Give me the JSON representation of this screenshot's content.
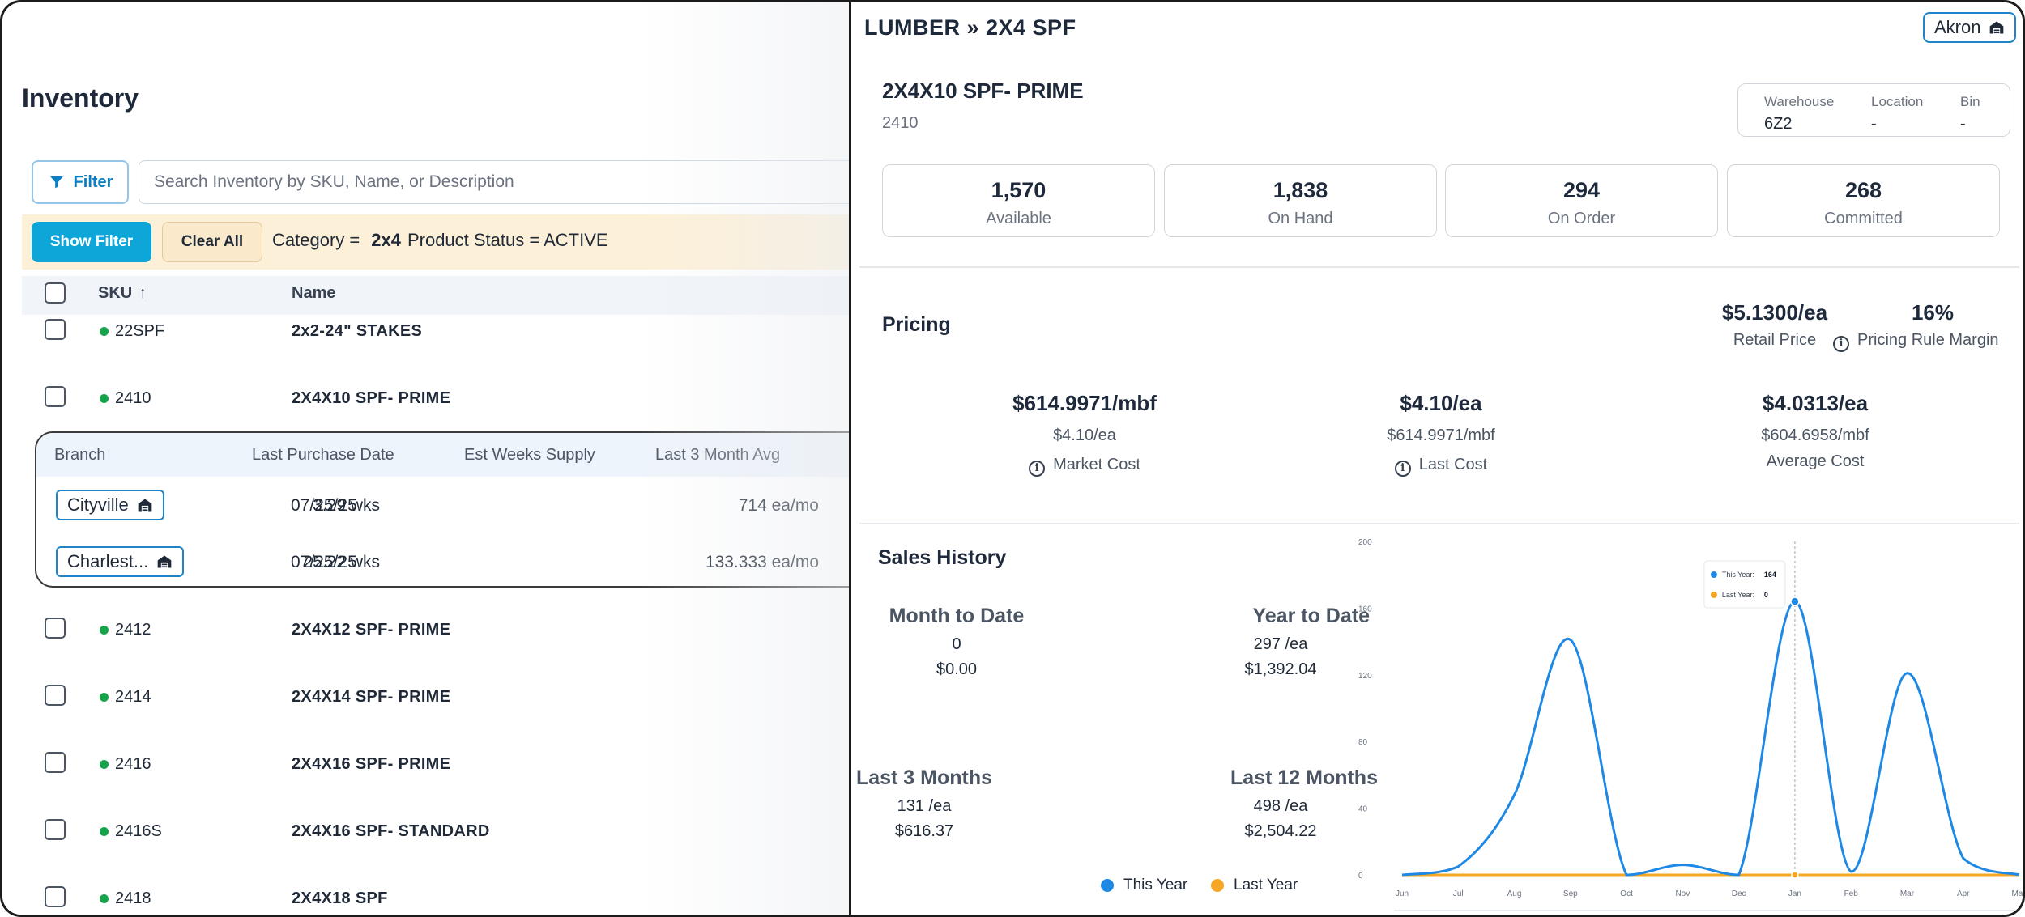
{
  "inventory": {
    "title": "Inventory",
    "filter_label": "Filter",
    "search_placeholder": "Search Inventory by SKU, Name, or Description",
    "show_filter_label": "Show Filter",
    "clear_all_label": "Clear All",
    "chips": {
      "category_label": "Category =",
      "category_value": "2x4",
      "status_text": "Product Status = ACTIVE"
    },
    "columns": {
      "sku": "SKU",
      "name": "Name"
    },
    "rows_top": [
      {
        "sku": "22SPF",
        "name": "2x2-24\" STAKES"
      },
      {
        "sku": "2410",
        "name": "2X4X10 SPF- PRIME"
      }
    ],
    "branch_table": {
      "headers": [
        "Branch",
        "Last Purchase Date",
        "Est Weeks Supply",
        "Last 3 Month Avg"
      ],
      "rows": [
        {
          "branch": "Cityville",
          "last_purchase": "07/25/25",
          "weeks_supply": "3.29 wks",
          "avg": "714 ea/mo"
        },
        {
          "branch": "Charlest...",
          "last_purchase": "07/25/25",
          "weeks_supply": "25.22 wks",
          "avg": "133.333 ea/mo"
        }
      ]
    },
    "rows_bottom": [
      {
        "sku": "2412",
        "name": "2X4X12 SPF- PRIME"
      },
      {
        "sku": "2414",
        "name": "2X4X14 SPF- PRIME"
      },
      {
        "sku": "2416",
        "name": "2X4X16 SPF- PRIME"
      },
      {
        "sku": "2416S",
        "name": "2X4X16 SPF- STANDARD"
      },
      {
        "sku": "2418",
        "name": "2X4X18 SPF"
      }
    ],
    "status_color": "#16a34a"
  },
  "detail": {
    "breadcrumb": "LUMBER » 2X4 SPF",
    "branch_label": "Akron",
    "product_name": "2X4X10 SPF- PRIME",
    "product_sku": "2410",
    "location": {
      "warehouse_label": "Warehouse",
      "warehouse_value": "6Z2",
      "location_label": "Location",
      "location_value": "-",
      "bin_label": "Bin",
      "bin_value": "-"
    },
    "stats": [
      {
        "value": "1,570",
        "label": "Available"
      },
      {
        "value": "1,838",
        "label": "On Hand"
      },
      {
        "value": "294",
        "label": "On Order"
      },
      {
        "value": "268",
        "label": "Committed"
      }
    ],
    "pricing": {
      "title": "Pricing",
      "retail_price": "$5.1300/ea",
      "retail_label": "Retail Price",
      "margin": "16%",
      "margin_label": "Pricing Rule Margin",
      "market": {
        "big": "$614.9971/mbf",
        "sub": "$4.10/ea",
        "label": "Market Cost"
      },
      "last": {
        "big": "$4.10/ea",
        "sub": "$614.9971/mbf",
        "label": "Last Cost"
      },
      "average": {
        "big": "$4.0313/ea",
        "sub": "$604.6958/mbf",
        "label": "Average Cost"
      }
    },
    "sales_history": {
      "title": "Sales History",
      "mtd_label": "Month to Date",
      "mtd_qty": "0",
      "mtd_amt": "$0.00",
      "ytd_label": "Year to Date",
      "ytd_qty": "297 /ea",
      "ytd_amt": "$1,392.04",
      "l3m_label": "Last 3 Months",
      "l3m_qty": "131 /ea",
      "l3m_amt": "$616.37",
      "l12m_label": "Last 12 Months",
      "l12m_qty": "498 /ea",
      "l12m_amt": "$2,504.22",
      "legend_this_year": "This Year",
      "legend_last_year": "Last Year"
    },
    "tooltip": {
      "this_year": "This Year:",
      "this_year_value": "164",
      "last_year": "Last Year:",
      "last_year_value": "0"
    },
    "colors": {
      "this_year": "#1e88e5",
      "last_year": "#f5a623",
      "accent": "#0ea5d9"
    }
  },
  "chart_data": {
    "type": "line",
    "categories": [
      "Jun",
      "Jul",
      "Aug",
      "Sep",
      "Oct",
      "Nov",
      "Dec",
      "Jan",
      "Feb",
      "Mar",
      "Apr",
      "May"
    ],
    "series": [
      {
        "name": "This Year",
        "values": [
          0,
          5,
          48,
          141,
          0,
          6,
          0,
          164,
          2,
          121,
          10,
          0
        ]
      },
      {
        "name": "Last Year",
        "values": [
          0,
          0,
          0,
          0,
          0,
          0,
          0,
          0,
          0,
          0,
          0,
          0
        ]
      }
    ],
    "yticks": [
      "0",
      "40",
      "80",
      "120",
      "160",
      "200"
    ],
    "ylim": [
      0,
      200
    ],
    "grid": false
  }
}
